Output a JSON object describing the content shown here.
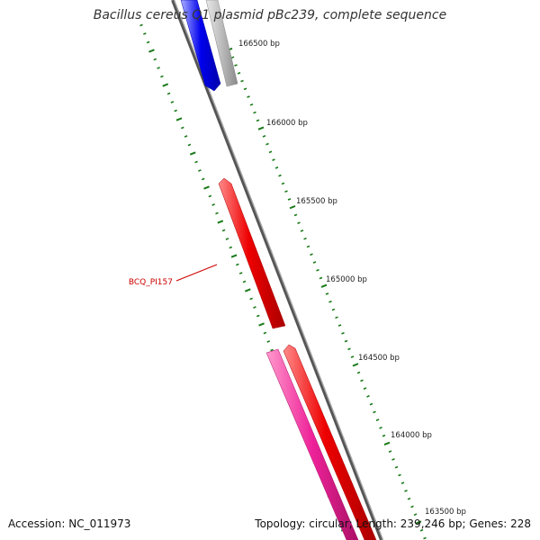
{
  "title": "Bacillus cereus Q1 plasmid pBc239, complete sequence",
  "footer": {
    "accession": "Accession: NC_011973",
    "topology": "Topology: circular; Length: 239,246 bp; Genes: 228"
  },
  "scale_labels": [
    "166500 bp",
    "166000 bp",
    "165500 bp",
    "165000 bp",
    "164500 bp",
    "164000 bp",
    "163500 bp"
  ],
  "feature_labels": [
    "BCQ_PI157"
  ],
  "colors": {
    "backbone": "#777777",
    "tick": "#1a7a1a",
    "blue_feature": "#0000ee",
    "grey_feature": "#b8b8b8",
    "red_feature": "#ee0000",
    "pink_feature": "#ee2299",
    "label_red": "#cc0000"
  }
}
